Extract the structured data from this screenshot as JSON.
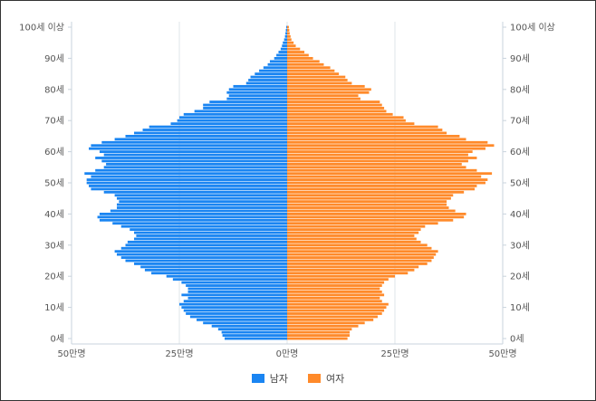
{
  "chart_data": {
    "type": "bar",
    "orientation": "horizontal-pyramid",
    "series": [
      {
        "name": "남자",
        "color": "#1a85f2"
      },
      {
        "name": "여자",
        "color": "#ff8a2a"
      }
    ],
    "ages": [
      0,
      1,
      2,
      3,
      4,
      5,
      6,
      7,
      8,
      9,
      10,
      11,
      12,
      13,
      14,
      15,
      16,
      17,
      18,
      19,
      20,
      21,
      22,
      23,
      24,
      25,
      26,
      27,
      28,
      29,
      30,
      31,
      32,
      33,
      34,
      35,
      36,
      37,
      38,
      39,
      40,
      41,
      42,
      43,
      44,
      45,
      46,
      47,
      48,
      49,
      50,
      51,
      52,
      53,
      54,
      55,
      56,
      57,
      58,
      59,
      60,
      61,
      62,
      63,
      64,
      65,
      66,
      67,
      68,
      69,
      70,
      71,
      72,
      73,
      74,
      75,
      76,
      77,
      78,
      79,
      80,
      81,
      82,
      83,
      84,
      85,
      86,
      87,
      88,
      89,
      90,
      91,
      92,
      93,
      94,
      95,
      96,
      97,
      98,
      99,
      100
    ],
    "male_values": [
      14.5,
      15.0,
      15.2,
      16.0,
      17.5,
      19.5,
      21.0,
      22.5,
      23.5,
      24.0,
      24.5,
      25.0,
      24.0,
      23.0,
      24.5,
      23.0,
      23.0,
      23.5,
      24.5,
      26.5,
      28.0,
      31.5,
      33.0,
      34.0,
      35.5,
      37.5,
      38.5,
      39.5,
      40.0,
      38.5,
      37.5,
      37.0,
      35.5,
      35.0,
      35.5,
      36.5,
      38.5,
      40.5,
      43.5,
      44.0,
      43.5,
      41.0,
      39.5,
      39.5,
      39.0,
      39.5,
      40.0,
      42.5,
      45.5,
      46.0,
      46.5,
      46.5,
      45.5,
      47.0,
      44.5,
      42.5,
      42.0,
      43.0,
      44.5,
      42.5,
      43.5,
      46.0,
      45.5,
      43.0,
      40.0,
      37.5,
      35.5,
      33.5,
      32.0,
      27.0,
      25.5,
      25.0,
      24.0,
      21.5,
      19.5,
      19.5,
      18.0,
      14.0,
      13.5,
      14.0,
      13.5,
      12.5,
      9.5,
      9.0,
      8.5,
      7.5,
      6.5,
      5.5,
      4.5,
      4.0,
      3.0,
      2.5,
      2.0,
      1.5,
      1.2,
      1.0,
      0.7,
      0.5,
      0.4,
      0.3,
      0.2
    ],
    "female_values": [
      14.0,
      14.5,
      14.5,
      15.0,
      16.5,
      18.0,
      20.0,
      21.0,
      22.0,
      22.5,
      23.0,
      23.5,
      22.0,
      21.5,
      22.5,
      22.0,
      21.5,
      22.0,
      22.5,
      23.5,
      25.0,
      28.0,
      29.5,
      30.5,
      32.5,
      33.5,
      34.0,
      34.5,
      35.0,
      33.5,
      32.5,
      31.0,
      30.0,
      29.5,
      30.5,
      31.0,
      32.0,
      35.0,
      38.5,
      41.0,
      41.5,
      39.0,
      37.5,
      37.0,
      37.0,
      38.0,
      38.5,
      41.0,
      43.5,
      44.0,
      46.0,
      46.5,
      45.0,
      47.5,
      44.0,
      41.5,
      40.5,
      42.0,
      44.0,
      42.0,
      43.0,
      46.0,
      48.0,
      46.5,
      41.5,
      40.0,
      37.0,
      36.0,
      35.0,
      29.5,
      27.5,
      27.0,
      24.5,
      23.0,
      22.5,
      22.0,
      21.5,
      17.0,
      16.5,
      19.0,
      19.5,
      18.0,
      15.0,
      14.0,
      13.5,
      12.0,
      11.0,
      10.0,
      8.5,
      7.5,
      6.0,
      5.0,
      4.0,
      3.0,
      2.0,
      1.5,
      1.0,
      0.8,
      0.6,
      0.5,
      0.4
    ],
    "x_ticks_left": [
      "50만명",
      "25만명",
      "0만명"
    ],
    "x_ticks_right": [
      "25만명",
      "50만명"
    ],
    "y_ticks": [
      "0세",
      "10세",
      "20세",
      "30세",
      "40세",
      "50세",
      "60세",
      "70세",
      "80세",
      "90세",
      "100세 이상"
    ],
    "xlim": [
      0,
      50
    ],
    "unit": "만명",
    "grid": true,
    "legend_position": "bottom"
  }
}
